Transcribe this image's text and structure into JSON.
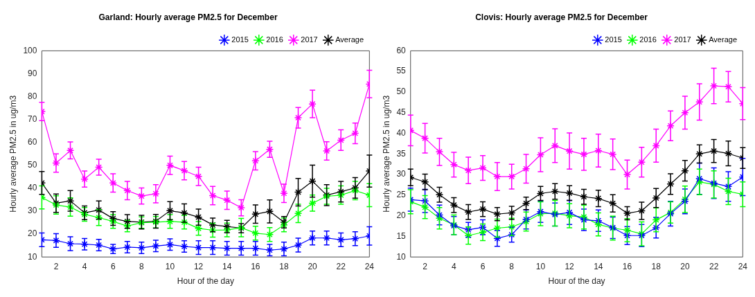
{
  "chart_data": [
    {
      "type": "line",
      "title": "Garland: Hourly average PM2.5 for December",
      "xlabel": "Hour of the day",
      "ylabel": "Hourly average PM2.5 in ug/m3",
      "x": [
        1,
        2,
        3,
        4,
        5,
        6,
        7,
        8,
        9,
        10,
        11,
        12,
        13,
        14,
        15,
        16,
        17,
        18,
        19,
        20,
        21,
        22,
        23,
        24
      ],
      "xlim": [
        1,
        24
      ],
      "xticks": [
        2,
        4,
        6,
        8,
        10,
        12,
        14,
        16,
        18,
        20,
        22,
        24
      ],
      "ylim": [
        10,
        100
      ],
      "yticks": [
        10,
        20,
        30,
        40,
        50,
        60,
        70,
        80,
        90,
        100
      ],
      "legend": "top right",
      "marker": "cross",
      "series": [
        {
          "name": "2015",
          "color": "#0000ff",
          "values": [
            17.5,
            17.2,
            15.8,
            15.6,
            15.2,
            13.5,
            14.3,
            14,
            14.8,
            15.4,
            14.6,
            14.1,
            14.1,
            13.8,
            13.8,
            13.8,
            13,
            13.5,
            15.2,
            18.3,
            18.3,
            17.5,
            18,
            19.2
          ],
          "errors": [
            3,
            3,
            3,
            2.5,
            2.5,
            2,
            2.5,
            2.5,
            2.5,
            2.5,
            2.5,
            3,
            3,
            3,
            3,
            3,
            2.5,
            3,
            3,
            3,
            3,
            3,
            3,
            4
          ]
        },
        {
          "name": "2016",
          "color": "#00ff00",
          "values": [
            36,
            32.7,
            31.8,
            28.6,
            27.2,
            25.5,
            23.5,
            25,
            25.2,
            25.5,
            25.2,
            22.5,
            21.7,
            21.8,
            22.8,
            20.4,
            19.8,
            24,
            29,
            33.5,
            36.5,
            37,
            39,
            37
          ],
          "errors": [
            5,
            4,
            4,
            3,
            3.5,
            3,
            2.5,
            2.5,
            2.5,
            3,
            3,
            3,
            3,
            3,
            4,
            3,
            3,
            3,
            4,
            3.5,
            3.5,
            4,
            4,
            5
          ]
        },
        {
          "name": "2017",
          "color": "#ff00ff",
          "values": [
            73.5,
            51,
            56.5,
            44,
            49.2,
            42.3,
            39,
            36.6,
            37.6,
            50,
            47.7,
            45.2,
            36.8,
            34.8,
            31.5,
            52,
            57,
            37.8,
            70.8,
            76.8,
            56.3,
            61,
            64,
            85.5
          ],
          "errors": [
            4,
            4,
            3.7,
            3.5,
            3.5,
            4,
            4,
            3.5,
            4,
            4,
            4,
            4,
            4,
            4,
            3.5,
            4,
            3.5,
            4,
            4.5,
            6,
            4,
            4.5,
            4.5,
            6
          ]
        },
        {
          "name": "Average",
          "color": "#000000",
          "values": [
            42.3,
            33.5,
            34.5,
            29.3,
            30.5,
            26.8,
            25.5,
            25.2,
            25.6,
            30.2,
            29.2,
            27.4,
            24,
            23.3,
            22.6,
            28.7,
            29.9,
            25.2,
            38.3,
            43.1,
            37,
            38.5,
            40.2,
            47.5
          ],
          "errors": [
            5,
            4,
            4.5,
            3,
            4,
            3,
            3,
            3,
            3,
            4,
            4,
            3.5,
            3,
            2.7,
            2,
            4,
            5,
            2.5,
            6,
            7,
            4.6,
            4.5,
            4.5,
            7
          ]
        }
      ]
    },
    {
      "type": "line",
      "title": "Clovis: Hourly average PM2.5 for December",
      "xlabel": "Hour of the day",
      "ylabel": "Hourly average PM2.5 in ug/m3",
      "x": [
        1,
        2,
        3,
        4,
        5,
        6,
        7,
        8,
        9,
        10,
        11,
        12,
        13,
        14,
        15,
        16,
        17,
        18,
        19,
        20,
        21,
        22,
        23,
        24
      ],
      "xlim": [
        1,
        24
      ],
      "xticks": [
        2,
        4,
        6,
        8,
        10,
        12,
        14,
        16,
        18,
        20,
        22,
        24
      ],
      "ylim": [
        10,
        60
      ],
      "yticks": [
        10,
        15,
        20,
        25,
        30,
        35,
        40,
        45,
        50,
        55,
        60
      ],
      "legend": "top right",
      "marker": "cross",
      "series": [
        {
          "name": "2015",
          "color": "#0000ff",
          "values": [
            23.9,
            23.6,
            20.2,
            17.6,
            16.6,
            17.2,
            14.5,
            15.4,
            19.1,
            21,
            20.3,
            20.8,
            19,
            18.8,
            17.1,
            15.2,
            15.2,
            17.1,
            20.5,
            23.5,
            29,
            27.9,
            27.1,
            29.4
          ],
          "errors": [
            2.8,
            2.8,
            2.4,
            2.2,
            1.8,
            1.8,
            1.9,
            1.8,
            2.3,
            2.6,
            2.8,
            2.9,
            2.6,
            2.6,
            2.6,
            2.2,
            2.7,
            2.5,
            3,
            3,
            3.8,
            3.7,
            3.6,
            4.5
          ]
        },
        {
          "name": "2016",
          "color": "#00ff00",
          "values": [
            23.4,
            22.1,
            19.4,
            17.8,
            15.2,
            16,
            17,
            17.3,
            18.6,
            20.5,
            20.6,
            20,
            19.7,
            17.9,
            17,
            16.5,
            15.6,
            19,
            20.8,
            24,
            28.2,
            27.6,
            25.9,
            25.2
          ],
          "errors": [
            2.9,
            2.8,
            2.6,
            2.4,
            2.1,
            2,
            2.2,
            2.1,
            2.3,
            2.9,
            3.1,
            2.9,
            2.9,
            2.8,
            2.9,
            2.8,
            2.9,
            2.9,
            2.6,
            3.2,
            3.1,
            3.3,
            3.2,
            3
          ]
        },
        {
          "name": "2017",
          "color": "#ff00ff",
          "values": [
            40.7,
            38.8,
            35.5,
            32.4,
            31,
            31.6,
            29.5,
            29.5,
            31.4,
            34.8,
            37,
            35.7,
            34.9,
            35.8,
            34.9,
            30,
            33,
            37,
            41.8,
            45,
            47.6,
            51.5,
            51.3,
            47.2
          ],
          "errors": [
            3.7,
            3.6,
            3.3,
            3,
            3.2,
            3,
            3.4,
            3,
            3.5,
            4.1,
            4.1,
            4.4,
            3.9,
            4,
            3.7,
            3.5,
            3.6,
            4,
            3.6,
            4,
            4.4,
            4.3,
            3.7,
            3.9
          ]
        },
        {
          "name": "Average",
          "color": "#000000",
          "values": [
            29.3,
            28.2,
            25.1,
            22.6,
            20.9,
            21.6,
            20.4,
            20.7,
            23,
            25.4,
            25.9,
            25.5,
            24.6,
            24.2,
            23,
            20.6,
            21.2,
            24.3,
            27.7,
            30.9,
            35,
            35.7,
            35.1,
            34
          ],
          "errors": [
            2,
            1.9,
            1.8,
            1.8,
            1.8,
            1.8,
            1.6,
            1.6,
            1.5,
            1.7,
            1.9,
            1.8,
            1.8,
            2,
            2.1,
            1.6,
            2.1,
            2.3,
            2.5,
            2.5,
            2.2,
            2.8,
            3,
            2.5
          ]
        }
      ]
    }
  ]
}
